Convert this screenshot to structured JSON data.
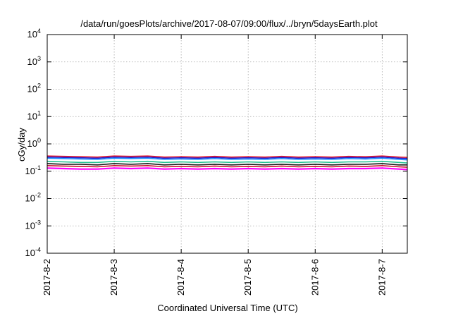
{
  "chart_data": {
    "type": "line",
    "title": "/data/run/goesPlots/archive/2017-08-07/09:00/flux/../bryn/5daysEarth.plot",
    "xlabel": "Coordinated Universal Time (UTC)",
    "ylabel": "cGy/day",
    "y_scale": "log",
    "ylim": [
      0.0001,
      10000
    ],
    "y_ticks": [
      {
        "value": 0.0001,
        "base": "10",
        "exp": "-4"
      },
      {
        "value": 0.001,
        "base": "10",
        "exp": "-3"
      },
      {
        "value": 0.01,
        "base": "10",
        "exp": "-2"
      },
      {
        "value": 0.1,
        "base": "10",
        "exp": "-1"
      },
      {
        "value": 1,
        "base": "10",
        "exp": "0"
      },
      {
        "value": 10,
        "base": "10",
        "exp": "1"
      },
      {
        "value": 100,
        "base": "10",
        "exp": "2"
      },
      {
        "value": 1000,
        "base": "10",
        "exp": "3"
      },
      {
        "value": 10000,
        "base": "10",
        "exp": "4"
      }
    ],
    "x_type": "date",
    "xlim": [
      "2017-08-02 00:00",
      "2017-08-07 09:00"
    ],
    "x_ticks": [
      {
        "value": "2017-08-02 00:00",
        "label": "2017-8-2"
      },
      {
        "value": "2017-08-03 00:00",
        "label": "2017-8-3"
      },
      {
        "value": "2017-08-04 00:00",
        "label": "2017-8-4"
      },
      {
        "value": "2017-08-05 00:00",
        "label": "2017-8-5"
      },
      {
        "value": "2017-08-06 00:00",
        "label": "2017-8-6"
      },
      {
        "value": "2017-08-07 00:00",
        "label": "2017-8-7"
      }
    ],
    "grid": true,
    "x": [
      "2017-08-02 00:00",
      "2017-08-02 06:00",
      "2017-08-02 12:00",
      "2017-08-02 18:00",
      "2017-08-03 00:00",
      "2017-08-03 06:00",
      "2017-08-03 12:00",
      "2017-08-03 18:00",
      "2017-08-04 00:00",
      "2017-08-04 06:00",
      "2017-08-04 12:00",
      "2017-08-04 18:00",
      "2017-08-05 00:00",
      "2017-08-05 06:00",
      "2017-08-05 12:00",
      "2017-08-05 18:00",
      "2017-08-06 00:00",
      "2017-08-06 06:00",
      "2017-08-06 12:00",
      "2017-08-06 18:00",
      "2017-08-07 00:00",
      "2017-08-07 06:00",
      "2017-08-07 09:00"
    ],
    "series": [
      {
        "color": "#e8192c",
        "values": [
          0.36,
          0.35,
          0.34,
          0.33,
          0.36,
          0.35,
          0.36,
          0.33,
          0.34,
          0.33,
          0.35,
          0.33,
          0.34,
          0.33,
          0.35,
          0.33,
          0.34,
          0.33,
          0.35,
          0.34,
          0.36,
          0.33,
          0.32
        ]
      },
      {
        "color": "#1e1ed2",
        "values": [
          0.33,
          0.32,
          0.31,
          0.3,
          0.33,
          0.32,
          0.33,
          0.3,
          0.31,
          0.3,
          0.32,
          0.3,
          0.31,
          0.3,
          0.32,
          0.3,
          0.31,
          0.3,
          0.32,
          0.31,
          0.33,
          0.3,
          0.29
        ]
      },
      {
        "color": "#1e90ff",
        "values": [
          0.3,
          0.29,
          0.28,
          0.27,
          0.3,
          0.29,
          0.3,
          0.27,
          0.28,
          0.27,
          0.29,
          0.27,
          0.28,
          0.27,
          0.29,
          0.27,
          0.28,
          0.27,
          0.29,
          0.28,
          0.3,
          0.27,
          0.26
        ]
      },
      {
        "color": "#20c090",
        "values": [
          0.23,
          0.22,
          0.21,
          0.21,
          0.23,
          0.22,
          0.23,
          0.21,
          0.22,
          0.21,
          0.22,
          0.21,
          0.22,
          0.21,
          0.22,
          0.21,
          0.22,
          0.21,
          0.22,
          0.22,
          0.23,
          0.21,
          0.2
        ]
      },
      {
        "color": "#181818",
        "values": [
          0.19,
          0.18,
          0.18,
          0.17,
          0.19,
          0.18,
          0.19,
          0.17,
          0.18,
          0.17,
          0.18,
          0.17,
          0.18,
          0.17,
          0.18,
          0.17,
          0.18,
          0.17,
          0.18,
          0.18,
          0.19,
          0.17,
          0.17
        ]
      },
      {
        "color": "#c8102e",
        "values": [
          0.16,
          0.155,
          0.15,
          0.145,
          0.16,
          0.155,
          0.16,
          0.145,
          0.15,
          0.145,
          0.155,
          0.145,
          0.15,
          0.145,
          0.155,
          0.145,
          0.15,
          0.145,
          0.155,
          0.15,
          0.16,
          0.145,
          0.14
        ]
      },
      {
        "color": "#ff00ff",
        "values": [
          0.13,
          0.125,
          0.12,
          0.12,
          0.13,
          0.125,
          0.13,
          0.12,
          0.125,
          0.12,
          0.125,
          0.12,
          0.125,
          0.12,
          0.125,
          0.12,
          0.125,
          0.12,
          0.125,
          0.125,
          0.13,
          0.12,
          0.115
        ]
      }
    ]
  }
}
